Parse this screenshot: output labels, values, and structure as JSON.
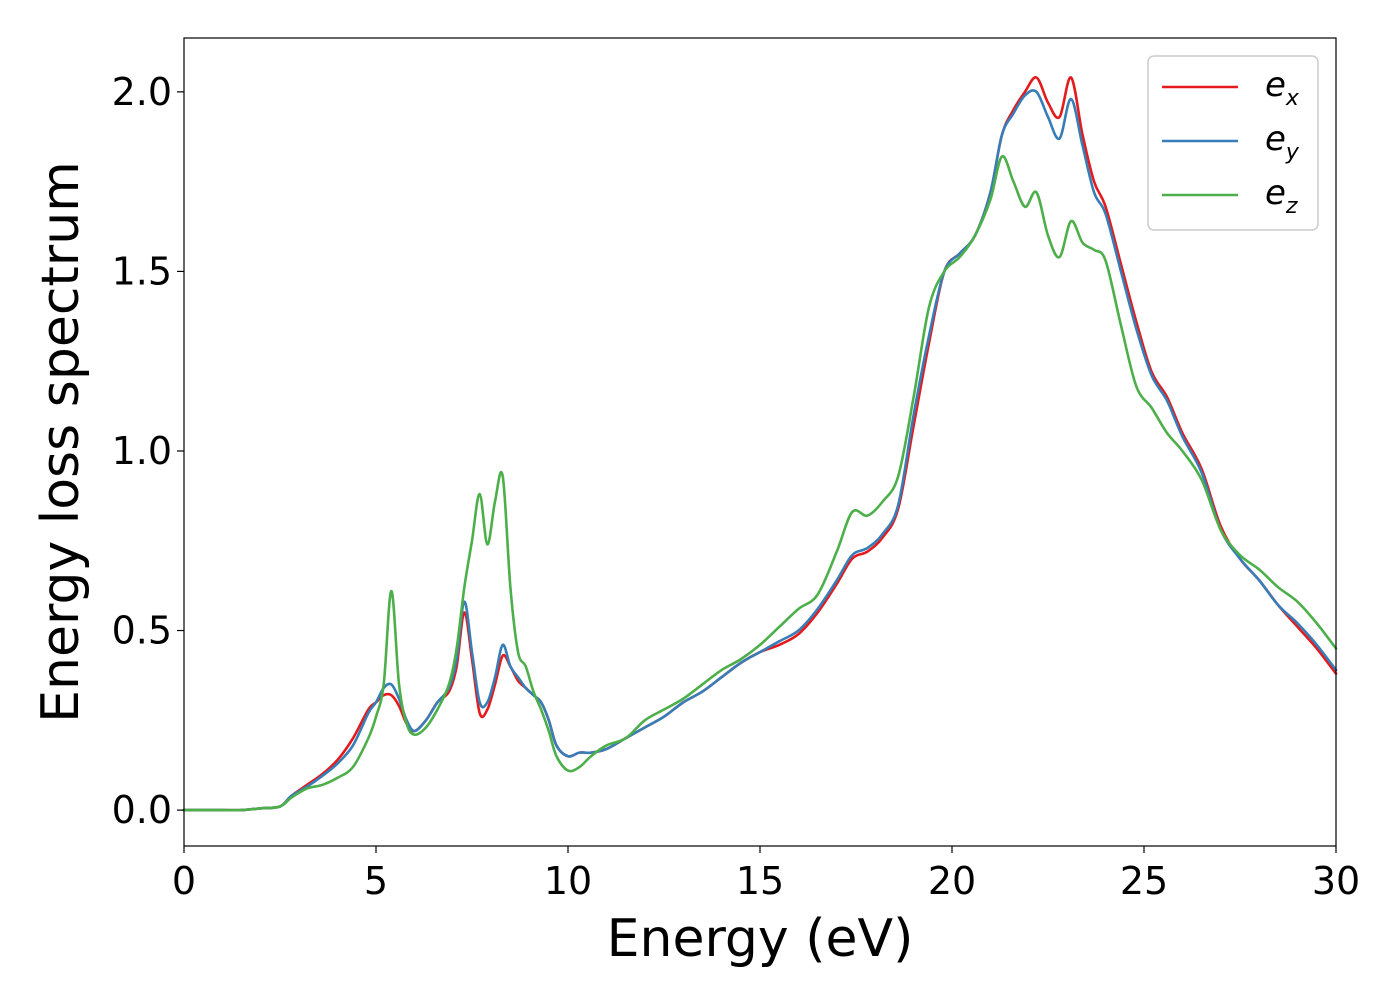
{
  "chart_data": {
    "type": "line",
    "title": "",
    "xlabel": "Energy (eV)",
    "ylabel": "Energy loss spectrum",
    "xlim": [
      0,
      30
    ],
    "ylim": [
      -0.1,
      2.15
    ],
    "xticks": [
      "0",
      "5",
      "10",
      "15",
      "20",
      "25",
      "30"
    ],
    "yticks": [
      "0.0",
      "0.5",
      "1.0",
      "1.5",
      "2.0"
    ],
    "grid": false,
    "legend_position": "top-right",
    "x": [
      0,
      0.5,
      1,
      1.5,
      2,
      2.5,
      2.8,
      3.2,
      3.6,
      4.0,
      4.4,
      4.8,
      5.0,
      5.2,
      5.4,
      5.6,
      5.8,
      6.0,
      6.3,
      6.6,
      6.9,
      7.1,
      7.3,
      7.5,
      7.7,
      7.9,
      8.1,
      8.3,
      8.5,
      8.7,
      8.9,
      9.1,
      9.3,
      9.5,
      9.7,
      10.0,
      10.3,
      10.6,
      11.0,
      11.5,
      12.0,
      12.5,
      13.0,
      13.5,
      14.0,
      14.5,
      15.0,
      15.5,
      16.0,
      16.5,
      17.0,
      17.4,
      17.8,
      18.2,
      18.6,
      19.0,
      19.4,
      19.8,
      20.2,
      20.6,
      21.0,
      21.3,
      21.6,
      21.9,
      22.2,
      22.5,
      22.8,
      23.1,
      23.4,
      23.7,
      24.0,
      24.4,
      24.8,
      25.2,
      25.6,
      26.0,
      26.5,
      27.0,
      27.5,
      28.0,
      28.5,
      29.0,
      29.5,
      30.0
    ],
    "series": [
      {
        "name": "e_x",
        "label_base": "e",
        "label_sub": "x",
        "color": "#e41a1c",
        "values": [
          0,
          0,
          0,
          0,
          0.005,
          0.01,
          0.04,
          0.07,
          0.1,
          0.14,
          0.2,
          0.28,
          0.3,
          0.32,
          0.32,
          0.29,
          0.24,
          0.22,
          0.25,
          0.3,
          0.33,
          0.4,
          0.55,
          0.42,
          0.27,
          0.28,
          0.35,
          0.43,
          0.4,
          0.36,
          0.34,
          0.32,
          0.3,
          0.25,
          0.18,
          0.15,
          0.16,
          0.16,
          0.17,
          0.2,
          0.23,
          0.26,
          0.3,
          0.33,
          0.37,
          0.41,
          0.44,
          0.46,
          0.49,
          0.55,
          0.63,
          0.7,
          0.72,
          0.76,
          0.84,
          1.07,
          1.3,
          1.5,
          1.55,
          1.6,
          1.72,
          1.88,
          1.95,
          2.0,
          2.04,
          1.97,
          1.93,
          2.04,
          1.88,
          1.75,
          1.68,
          1.52,
          1.36,
          1.22,
          1.15,
          1.05,
          0.95,
          0.79,
          0.7,
          0.64,
          0.57,
          0.51,
          0.45,
          0.38
        ]
      },
      {
        "name": "e_y",
        "label_base": "e",
        "label_sub": "y",
        "color": "#377eb8",
        "values": [
          0,
          0,
          0,
          0,
          0.005,
          0.01,
          0.04,
          0.065,
          0.095,
          0.13,
          0.18,
          0.27,
          0.3,
          0.34,
          0.35,
          0.31,
          0.25,
          0.22,
          0.25,
          0.3,
          0.34,
          0.42,
          0.58,
          0.44,
          0.3,
          0.3,
          0.37,
          0.46,
          0.4,
          0.37,
          0.34,
          0.32,
          0.3,
          0.25,
          0.18,
          0.15,
          0.16,
          0.16,
          0.17,
          0.2,
          0.23,
          0.26,
          0.3,
          0.33,
          0.37,
          0.41,
          0.44,
          0.47,
          0.5,
          0.56,
          0.64,
          0.71,
          0.73,
          0.77,
          0.85,
          1.1,
          1.32,
          1.5,
          1.55,
          1.6,
          1.72,
          1.88,
          1.94,
          1.99,
          2.0,
          1.93,
          1.87,
          1.98,
          1.85,
          1.72,
          1.66,
          1.5,
          1.34,
          1.21,
          1.14,
          1.04,
          0.94,
          0.78,
          0.7,
          0.64,
          0.57,
          0.52,
          0.46,
          0.39
        ]
      },
      {
        "name": "e_z",
        "label_base": "e",
        "label_sub": "z",
        "color": "#4daf4a",
        "values": [
          0,
          0,
          0,
          0,
          0.005,
          0.01,
          0.035,
          0.06,
          0.07,
          0.09,
          0.12,
          0.2,
          0.26,
          0.35,
          0.61,
          0.35,
          0.24,
          0.21,
          0.23,
          0.28,
          0.35,
          0.45,
          0.62,
          0.75,
          0.88,
          0.74,
          0.86,
          0.93,
          0.62,
          0.44,
          0.4,
          0.33,
          0.28,
          0.22,
          0.15,
          0.11,
          0.12,
          0.15,
          0.18,
          0.2,
          0.25,
          0.28,
          0.31,
          0.35,
          0.39,
          0.42,
          0.46,
          0.51,
          0.56,
          0.6,
          0.72,
          0.83,
          0.82,
          0.86,
          0.93,
          1.15,
          1.4,
          1.5,
          1.54,
          1.6,
          1.7,
          1.82,
          1.75,
          1.68,
          1.72,
          1.6,
          1.54,
          1.64,
          1.58,
          1.56,
          1.53,
          1.35,
          1.18,
          1.12,
          1.05,
          1.0,
          0.92,
          0.78,
          0.71,
          0.67,
          0.62,
          0.58,
          0.52,
          0.45
        ]
      }
    ]
  }
}
